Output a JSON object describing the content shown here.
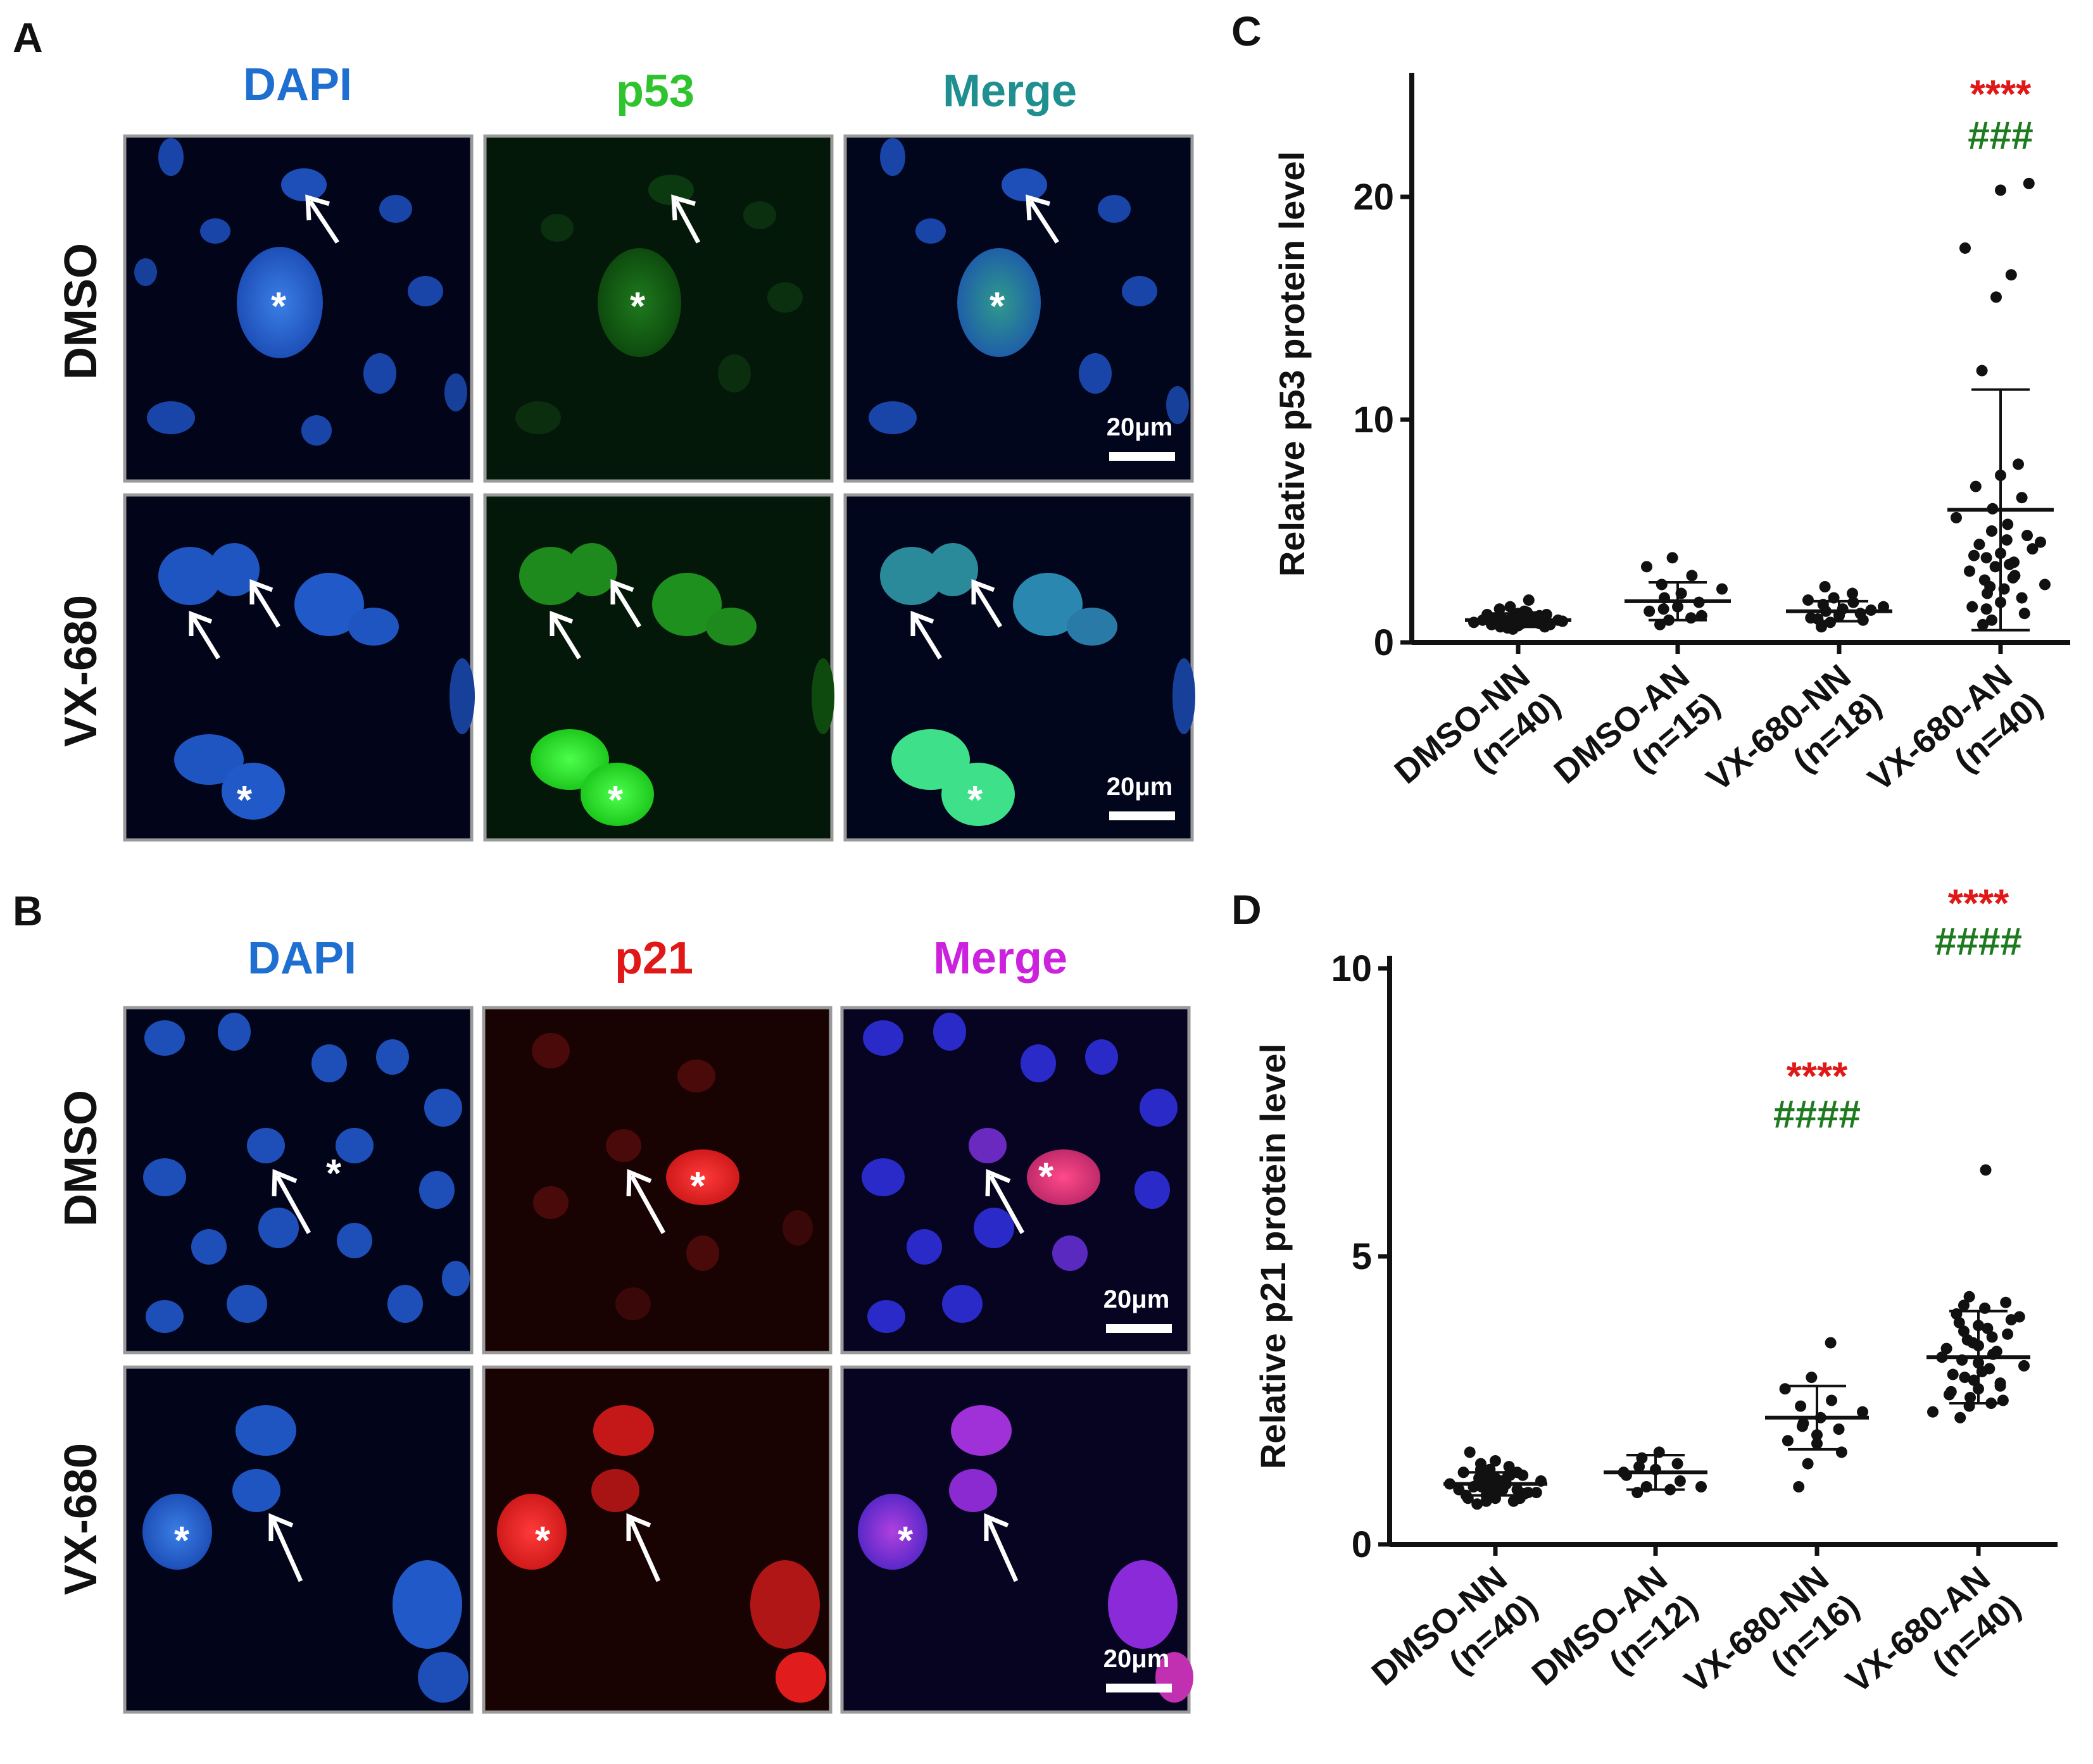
{
  "panels": {
    "A": {
      "label": "A",
      "channels": [
        "DAPI",
        "p53",
        "Merge"
      ],
      "channel_colors": [
        "#1f6fd1",
        "#2fc42f",
        "#1f8f8f"
      ],
      "rows": [
        "DMSO",
        "VX-680"
      ],
      "scale_bar": "20μm",
      "asterisk": "*"
    },
    "B": {
      "label": "B",
      "channels": [
        "DAPI",
        "p21",
        "Merge"
      ],
      "channel_colors": [
        "#1f6fd1",
        "#e01818",
        "#cc22dd"
      ],
      "rows": [
        "DMSO",
        "VX-680"
      ],
      "scale_bar": "20μm",
      "asterisk": "*"
    },
    "C": {
      "label": "C"
    },
    "D": {
      "label": "D"
    }
  },
  "chart_data": [
    {
      "type": "scatter",
      "panel": "C",
      "ylabel": "Relative p53 protein level",
      "ylim": [
        0,
        25
      ],
      "yticks": [
        0,
        10,
        20
      ],
      "categories": [
        {
          "name": "DMSO-NN",
          "n": "(n=40)"
        },
        {
          "name": "DMSO-AN",
          "n": "(n=15)"
        },
        {
          "name": "VX-680-NN",
          "n": "(n=18)"
        },
        {
          "name": "VX-680-AN",
          "n": "(n=40)"
        }
      ],
      "means": [
        1.0,
        1.85,
        1.4,
        5.95
      ],
      "sd": [
        0.3,
        0.85,
        0.45,
        5.4
      ],
      "points": [
        [
          0.7,
          0.8,
          0.9,
          1.0,
          1.1,
          1.2,
          0.75,
          0.85,
          0.95,
          1.05,
          1.15,
          1.25,
          0.6,
          0.9,
          1.0,
          1.3,
          0.8,
          1.1,
          1.4,
          0.7,
          1.0,
          1.2,
          0.9,
          1.6,
          0.85,
          1.05,
          0.95,
          1.15,
          0.65,
          1.35,
          1.0,
          0.9,
          1.1,
          0.8,
          1.2,
          1.9,
          1.0,
          0.75,
          1.25,
          1.5
        ],
        [
          0.8,
          1.0,
          1.2,
          1.4,
          1.6,
          1.8,
          2.0,
          2.2,
          2.4,
          2.6,
          3.0,
          3.4,
          3.8,
          1.1,
          1.5
        ],
        [
          0.7,
          0.9,
          1.0,
          1.1,
          1.2,
          1.3,
          1.4,
          1.5,
          1.6,
          1.7,
          1.8,
          1.9,
          2.0,
          2.2,
          2.5,
          1.25,
          1.45,
          1.05
        ],
        [
          0.8,
          1.0,
          1.3,
          1.6,
          1.8,
          2.0,
          2.2,
          2.4,
          2.6,
          2.8,
          3.0,
          3.2,
          3.4,
          3.6,
          3.8,
          4.0,
          4.2,
          4.4,
          4.6,
          4.8,
          5.0,
          5.3,
          5.6,
          6.0,
          6.5,
          7.0,
          7.5,
          8.0,
          2.5,
          3.5,
          4.5,
          1.5,
          2.9,
          3.9,
          15.5,
          16.5,
          17.7,
          20.3,
          20.6,
          12.2
        ]
      ],
      "significance": [
        {
          "category": 3,
          "red": "****",
          "green": "###"
        }
      ]
    },
    {
      "type": "scatter",
      "panel": "D",
      "ylabel": "Relative p21 protein level",
      "ylim": [
        0,
        10
      ],
      "yticks": [
        0,
        5,
        10
      ],
      "categories": [
        {
          "name": "DMSO-NN",
          "n": "(n=40)"
        },
        {
          "name": "DMSO-AN",
          "n": "(n=12)"
        },
        {
          "name": "VX-680-NN",
          "n": "(n=16)"
        },
        {
          "name": "VX-680-AN",
          "n": "(n=40)"
        }
      ],
      "means": [
        1.05,
        1.25,
        2.2,
        3.25
      ],
      "sd": [
        0.2,
        0.3,
        0.55,
        0.8
      ],
      "points": [
        [
          0.7,
          0.75,
          0.8,
          0.85,
          0.9,
          0.95,
          1.0,
          1.05,
          1.1,
          1.15,
          1.2,
          1.25,
          1.3,
          1.35,
          1.4,
          0.8,
          0.9,
          1.0,
          1.1,
          1.2,
          0.85,
          0.95,
          1.05,
          1.15,
          1.25,
          1.6,
          1.45,
          0.75,
          1.0,
          1.1,
          0.9,
          1.3,
          1.2,
          0.8,
          1.0,
          1.05,
          0.95,
          1.15,
          0.88,
          1.02
        ],
        [
          0.9,
          1.0,
          1.1,
          1.2,
          1.3,
          1.4,
          1.5,
          1.6,
          1.0,
          1.35,
          0.95,
          1.25
        ],
        [
          1.0,
          1.4,
          1.6,
          1.8,
          1.9,
          2.0,
          2.1,
          2.2,
          2.3,
          2.4,
          2.5,
          2.7,
          2.9,
          3.5,
          2.05,
          1.75
        ],
        [
          2.2,
          2.4,
          2.5,
          2.6,
          2.7,
          2.8,
          2.9,
          3.0,
          3.1,
          3.2,
          3.3,
          3.4,
          3.5,
          3.6,
          3.7,
          3.8,
          3.9,
          4.0,
          4.1,
          4.2,
          4.3,
          6.5,
          2.3,
          2.55,
          2.75,
          2.95,
          3.15,
          3.35,
          3.55,
          3.75,
          3.95,
          4.15,
          2.45,
          2.65,
          2.85,
          3.05,
          3.25,
          3.45,
          3.65,
          3.85
        ]
      ],
      "significance": [
        {
          "category": 2,
          "red": "****",
          "green": "####"
        },
        {
          "category": 3,
          "red": "****",
          "green": "####"
        }
      ]
    }
  ]
}
